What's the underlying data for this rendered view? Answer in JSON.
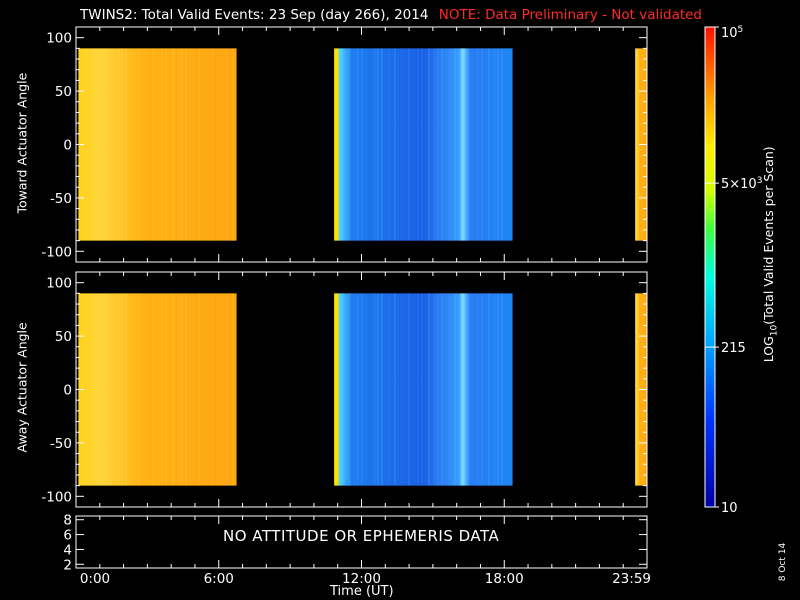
{
  "title": {
    "main": "TWINS2: Total Valid Events: 23 Sep (day 266), 2014",
    "note": "NOTE: Data Preliminary - Not validated"
  },
  "panels": {
    "top_ylabel": "Toward Actuator Angle",
    "bottom_ylabel": "Away Actuator Angle",
    "status_message": "NO ATTITUDE OR EPHEMERIS DATA"
  },
  "xaxis": {
    "label": "Time (UT)",
    "tick_labels": [
      "0:00",
      "6:00",
      "12:00",
      "18:00",
      "23:59"
    ]
  },
  "colorbar": {
    "label": "LOG10(Total Valid Events per Scan)",
    "tick_labels": [
      "10",
      "215",
      "5x10^3",
      "10^5"
    ]
  },
  "footer": {
    "date_stamp": "8 Oct 14"
  },
  "chart_data": [
    {
      "type": "heatmap",
      "title": "",
      "ylabel": "Toward Actuator Angle",
      "xlabel": "",
      "x_units": "hours UT",
      "xlim": [
        0,
        24
      ],
      "ylim": [
        -110,
        110
      ],
      "y_ticks": [
        100,
        50,
        0,
        -50,
        -100
      ],
      "data_y_range": [
        -90,
        90
      ],
      "colorscale": "log10",
      "color_range": [
        10,
        100000
      ],
      "segments": [
        {
          "x_start": 0.1,
          "x_end": 6.75,
          "approx_level": 30000
        },
        {
          "x_start": 10.85,
          "x_end": 18.35,
          "approx_level": 250
        },
        {
          "x_start": 23.5,
          "x_end": 24.0,
          "approx_level": 30000
        }
      ]
    },
    {
      "type": "heatmap",
      "title": "",
      "ylabel": "Away Actuator Angle",
      "xlabel": "",
      "x_units": "hours UT",
      "xlim": [
        0,
        24
      ],
      "ylim": [
        -110,
        110
      ],
      "y_ticks": [
        100,
        50,
        0,
        -50,
        -100
      ],
      "data_y_range": [
        -90,
        90
      ],
      "colorscale": "log10",
      "color_range": [
        10,
        100000
      ],
      "segments": [
        {
          "x_start": 0.1,
          "x_end": 6.75,
          "approx_level": 30000
        },
        {
          "x_start": 10.85,
          "x_end": 18.35,
          "approx_level": 250
        },
        {
          "x_start": 23.5,
          "x_end": 24.0,
          "approx_level": 30000
        }
      ]
    },
    {
      "type": "table",
      "title": "",
      "ylabel": "",
      "xlabel": "Time (UT)",
      "xlim": [
        0,
        24
      ],
      "ylim": [
        1.5,
        8.5
      ],
      "y_ticks": [
        8,
        6,
        4,
        2
      ],
      "message": "NO ATTITUDE OR EPHEMERIS DATA"
    }
  ]
}
